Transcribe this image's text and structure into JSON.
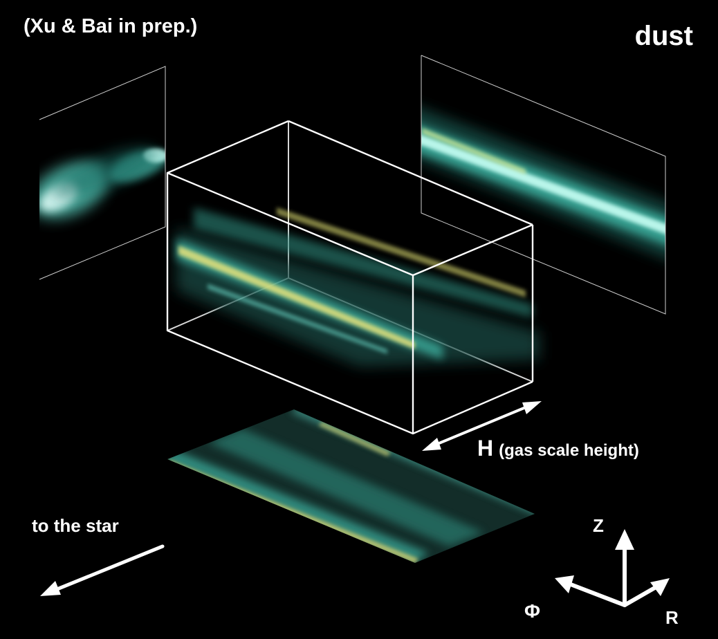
{
  "labels": {
    "citation": "(Xu & Bai in prep.)",
    "title": "dust",
    "h_symbol": "H",
    "h_desc": "(gas scale height)",
    "to_star": "to the star",
    "axis_z": "Z",
    "axis_phi": "Φ",
    "axis_r": "R"
  },
  "colors": {
    "background": "#000000",
    "outline": "#ffffff",
    "dust_cyan": "#7fe8d6",
    "dust_teal": "#2f7f73",
    "dust_yellow": "#e8e27a",
    "slice_floor": "#14302b"
  }
}
